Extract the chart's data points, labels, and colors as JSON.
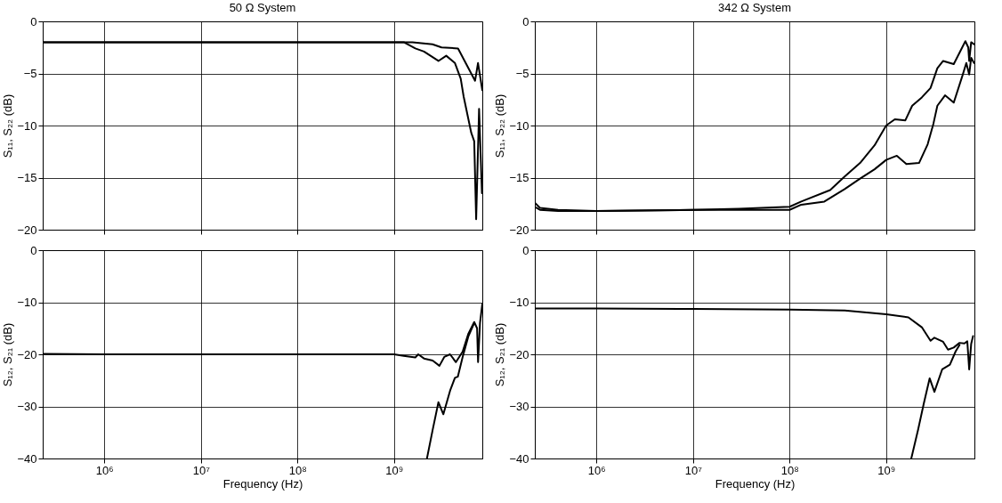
{
  "chart_data": [
    {
      "type": "line",
      "title": "50 Ω System",
      "ylabel": "S₁₁, S₂₂  (dB)",
      "log": "x",
      "grid": true,
      "tick_labels": "y",
      "line_style": "solid",
      "xlim": [
        230000,
        8200000000
      ],
      "xticks": [
        {
          "value": 1000000,
          "label": null
        },
        {
          "value": 10000000,
          "label": null
        },
        {
          "value": 100000000,
          "label": null
        },
        {
          "value": 1000000000,
          "label": null
        }
      ],
      "ylim": [
        -20,
        0
      ],
      "yticks": [
        -20,
        -15,
        -10,
        -5,
        0
      ],
      "series": [
        {
          "color": "#000000",
          "x": [
            230000,
            1000000,
            10000000,
            100000000,
            1000000000,
            1550000000,
            2500000000,
            3100000000,
            4600000000,
            6900000000,
            7400000000,
            8200000000
          ],
          "values": [
            -2,
            -2,
            -2,
            -2,
            -2,
            -2,
            -2.2,
            -2.5,
            -2.6,
            -5.7,
            -4,
            -6.6
          ]
        },
        {
          "color": "#000000",
          "x": [
            230000,
            1000000,
            10000000,
            100000000,
            1000000000,
            1260000000,
            1660000000,
            2040000000,
            2880000000,
            3470000000,
            4270000000,
            4900000000,
            5250000000,
            6300000000,
            6760000000,
            7080000000,
            7590000000,
            8130000000
          ],
          "values": [
            -2,
            -2,
            -2,
            -2,
            -2,
            -2,
            -2.6,
            -2.9,
            -3.8,
            -3.3,
            -4,
            -5.5,
            -7.2,
            -10.7,
            -11.5,
            -19,
            -8.4,
            -16.5
          ]
        }
      ]
    },
    {
      "type": "line",
      "title": "342 Ω System",
      "ylabel": "S₁₁, S₂₂  (dB)",
      "log": "x",
      "grid": true,
      "tick_labels": "y",
      "line_style": "solid",
      "xlim": [
        230000,
        8200000000
      ],
      "xticks": [
        {
          "value": 1000000,
          "label": null
        },
        {
          "value": 10000000,
          "label": null
        },
        {
          "value": 100000000,
          "label": null
        },
        {
          "value": 1000000000,
          "label": null
        }
      ],
      "ylim": [
        -20,
        0
      ],
      "yticks": [
        -20,
        -15,
        -10,
        -5,
        0
      ],
      "series": [
        {
          "color": "#000000",
          "x": [
            230000,
            260000,
            400000,
            1000000,
            10000000,
            30000000,
            100000000,
            132000000,
            263000000,
            372000000,
            537000000,
            759000000,
            1000000000,
            1230000000,
            1580000000,
            1860000000,
            2340000000,
            2880000000,
            3390000000,
            3890000000,
            5010000000,
            6610000000,
            7080000000,
            7240000000,
            7590000000,
            8130000000
          ],
          "values": [
            -17.4,
            -17.9,
            -18.1,
            -18.2,
            -18.1,
            -18,
            -17.8,
            -17.3,
            -16.2,
            -14.9,
            -13.6,
            -11.9,
            -10,
            -9.4,
            -9.5,
            -8.1,
            -7.3,
            -6.4,
            -4.5,
            -3.8,
            -4.1,
            -1.9,
            -2.5,
            -3.8,
            -2,
            -2.2
          ]
        },
        {
          "color": "#000000",
          "x": [
            230000,
            260000,
            400000,
            1000000,
            10000000,
            30000000,
            100000000,
            132000000,
            229000000,
            372000000,
            537000000,
            759000000,
            1000000000,
            1290000000,
            1620000000,
            2190000000,
            2690000000,
            3090000000,
            3390000000,
            4070000000,
            5010000000,
            6170000000,
            6760000000,
            7240000000,
            7590000000,
            8130000000
          ],
          "values": [
            -17.8,
            -18.1,
            -18.2,
            -18.2,
            -18.1,
            -18.1,
            -18.1,
            -17.6,
            -17.3,
            -16.1,
            -15.1,
            -14.2,
            -13.3,
            -12.9,
            -13.7,
            -13.6,
            -11.8,
            -9.8,
            -8.1,
            -7.1,
            -7.8,
            -5.2,
            -4,
            -5.1,
            -3.5,
            -4
          ]
        }
      ]
    },
    {
      "type": "line",
      "xlabel": "Frequency (Hz)",
      "ylabel": "S₁₂, S₂₁  (dB)",
      "log": "x",
      "grid": true,
      "line_style": "solid",
      "xlim": [
        230000,
        8200000000
      ],
      "xticks": [
        {
          "value": 1000000,
          "label": "10⁶"
        },
        {
          "value": 10000000,
          "label": "10⁷"
        },
        {
          "value": 100000000,
          "label": "10⁸"
        },
        {
          "value": 1000000000,
          "label": "10⁹"
        }
      ],
      "ylim": [
        -40,
        0
      ],
      "yticks": [
        -40,
        -30,
        -20,
        -10,
        0
      ],
      "series": [
        {
          "color": "#000000",
          "x": [
            230000,
            1000000,
            10000000,
            100000000,
            1000000000,
            1260000000,
            1660000000,
            1780000000,
            2040000000,
            2510000000,
            2950000000,
            3310000000,
            3800000000,
            4370000000,
            5130000000,
            5890000000,
            6760000000,
            7240000000,
            7410000000,
            7760000000,
            8200000000
          ],
          "values": [
            -19.9,
            -20,
            -20,
            -20,
            -20,
            -20.3,
            -20.6,
            -20,
            -20.8,
            -21.2,
            -22.2,
            -20.5,
            -20,
            -21.5,
            -19.5,
            -16,
            -13.8,
            -15,
            -21.5,
            -14,
            -10.3
          ]
        },
        {
          "color": "#000000",
          "x": [
            2190000000,
            2510000000,
            2880000000,
            3240000000,
            3800000000,
            4270000000,
            4570000000,
            5130000000,
            5890000000,
            6760000000
          ],
          "values": [
            -40,
            -34.5,
            -29.2,
            -31.5,
            -27,
            -24.5,
            -24.3,
            -20.5,
            -16.5,
            -14
          ]
        }
      ]
    },
    {
      "type": "line",
      "xlabel": "Frequency (Hz)",
      "ylabel": "S₁₂, S₂₁  (dB)",
      "log": "x",
      "grid": true,
      "line_style": "solid",
      "xlim": [
        230000,
        8200000000
      ],
      "xticks": [
        {
          "value": 1000000,
          "label": "10⁶"
        },
        {
          "value": 10000000,
          "label": "10⁷"
        },
        {
          "value": 100000000,
          "label": "10⁸"
        },
        {
          "value": 1000000000,
          "label": "10⁹"
        }
      ],
      "ylim": [
        -40,
        0
      ],
      "yticks": [
        -40,
        -30,
        -20,
        -10,
        0
      ],
      "series": [
        {
          "color": "#000000",
          "x": [
            230000,
            1000000,
            10000000,
            100000000,
            372000000,
            1000000000,
            1700000000,
            2340000000,
            2880000000,
            3160000000,
            3890000000,
            4370000000,
            5010000000,
            5750000000,
            6460000000,
            6920000000,
            7240000000,
            7590000000,
            7940000000
          ],
          "values": [
            -11.2,
            -11.2,
            -11.3,
            -11.4,
            -11.6,
            -12.3,
            -12.9,
            -14.8,
            -17.4,
            -16.8,
            -17.6,
            -19.1,
            -18.7,
            -17.8,
            -17.9,
            -17.5,
            -22.9,
            -18,
            -16.5
          ]
        },
        {
          "color": "#000000",
          "x": [
            1820000000,
            2140000000,
            2450000000,
            2820000000,
            3160000000,
            3800000000,
            4570000000,
            5250000000,
            5750000000
          ],
          "values": [
            -40,
            -34.5,
            -29.5,
            -24.6,
            -27.2,
            -22.9,
            -22,
            -19.4,
            -18.2
          ]
        }
      ]
    }
  ]
}
